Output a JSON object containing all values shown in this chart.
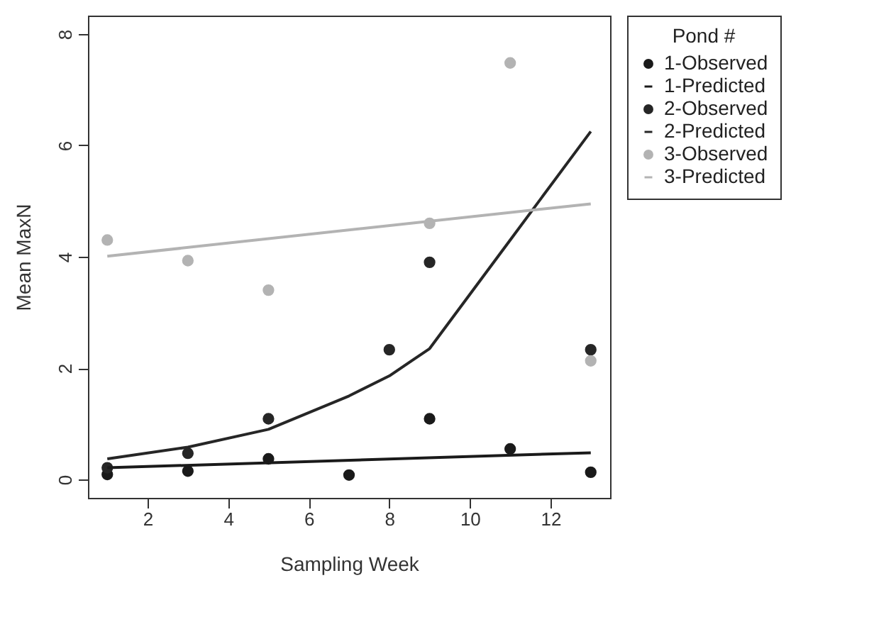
{
  "chart_data": {
    "type": "scatter",
    "xlabel": "Sampling Week",
    "ylabel": "Mean MaxN",
    "legend_title": "Pond #",
    "legend": "right",
    "grid": false,
    "xlim": [
      0.52,
      13.48
    ],
    "xticks": [
      2,
      4,
      6,
      8,
      10,
      12
    ],
    "ylim": [
      -0.33,
      8.33
    ],
    "yticks": [
      0,
      2,
      4,
      6,
      8
    ],
    "series": [
      {
        "name": "1-Observed",
        "marker": "circle",
        "color": "#1a1a1a",
        "x": [
          1,
          3,
          5,
          7,
          9,
          11,
          13
        ],
        "values": [
          0.09,
          0.15,
          0.37,
          0.08,
          1.09,
          0.55,
          0.13
        ]
      },
      {
        "name": "1-Predicted",
        "type": "line",
        "marker": "none",
        "color": "#1a1a1a",
        "x": [
          1,
          13
        ],
        "values": [
          0.21,
          0.48
        ]
      },
      {
        "name": "2-Observed",
        "marker": "circle",
        "color": "#262626",
        "x": [
          1,
          3,
          5,
          8,
          9,
          13
        ],
        "values": [
          0.21,
          0.47,
          1.09,
          2.33,
          3.9,
          2.33
        ]
      },
      {
        "name": "2-Predicted",
        "type": "line",
        "marker": "none",
        "color": "#262626",
        "x": [
          1,
          3,
          5,
          7,
          8,
          9,
          11,
          13
        ],
        "values": [
          0.37,
          0.58,
          0.9,
          1.5,
          1.86,
          2.35,
          4.3,
          6.25
        ]
      },
      {
        "name": "3-Observed",
        "marker": "circle",
        "color": "#b3b3b3",
        "x": [
          1,
          3,
          5,
          9,
          11,
          13
        ],
        "values": [
          4.3,
          3.93,
          3.4,
          4.6,
          7.48,
          2.13
        ]
      },
      {
        "name": "3-Predicted",
        "type": "line",
        "marker": "none",
        "color": "#b3b3b3",
        "x": [
          1,
          13
        ],
        "values": [
          4.01,
          4.95
        ]
      }
    ]
  }
}
